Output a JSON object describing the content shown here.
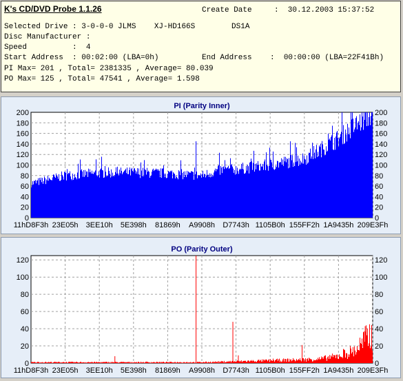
{
  "info": {
    "title": "K's CD/DVD Probe 1.1.26",
    "create_date_label": "Create Date",
    "create_date_value": ":  30.12.2003 15:37:52",
    "selected_drive": "Selected Drive : 3-0-0-0 JLMS    XJ-HD166S        DS1A",
    "disc_manufacturer": "Disc Manufacturer :",
    "speed": "Speed          :  4",
    "start_address": "Start Address  : 00:02:00 (LBA=0h)",
    "end_address": "End Address    :  00:00:00 (LBA=22F41Bh)",
    "pi_summary": "PI Max= 201 , Total= 2381335 , Average= 80.039",
    "po_summary": "PO Max= 125 , Total= 47541 , Average= 1.598"
  },
  "chart_data": [
    {
      "type": "bar",
      "title": "PI (Parity Inner)",
      "color": "#0000ff",
      "ylim": [
        0,
        200
      ],
      "yticks": [
        0,
        20,
        40,
        60,
        80,
        100,
        120,
        140,
        160,
        180,
        200
      ],
      "xticks": [
        "11hD8F3h",
        "23E05h",
        "3EE10h",
        "5E398h",
        "81869h",
        "A9908h",
        "D7743h",
        "1105B0h",
        "155FF2h",
        "1A9435h",
        "209E3Fh"
      ],
      "grid": true,
      "x_fraction": [
        0.0,
        0.1,
        0.2,
        0.3,
        0.4,
        0.5,
        0.55,
        0.6,
        0.7,
        0.8,
        0.85,
        0.9,
        0.95,
        1.0
      ],
      "values": [
        65,
        80,
        85,
        86,
        84,
        80,
        90,
        92,
        100,
        112,
        130,
        150,
        175,
        198
      ],
      "spikes": [
        {
          "x_fraction": 0.484,
          "value": 145
        },
        {
          "x_fraction": 0.775,
          "value": 142
        }
      ]
    },
    {
      "type": "bar",
      "title": "PO (Parity Outer)",
      "color": "#ff0000",
      "ylim": [
        0,
        125
      ],
      "yticks": [
        0,
        20,
        40,
        60,
        80,
        100,
        120
      ],
      "xticks": [
        "11hD8F3h",
        "23E05h",
        "3EE10h",
        "5E398h",
        "81869h",
        "A9908h",
        "D7743h",
        "1105B0h",
        "155FF2h",
        "1A9435h",
        "209E3Fh"
      ],
      "grid": true,
      "x_fraction": [
        0.0,
        0.3,
        0.5,
        0.6,
        0.7,
        0.8,
        0.85,
        0.9,
        0.95,
        1.0
      ],
      "values": [
        1,
        1,
        1,
        2,
        3,
        4,
        5,
        8,
        15,
        35
      ],
      "spikes": [
        {
          "x_fraction": 0.246,
          "value": 8
        },
        {
          "x_fraction": 0.484,
          "value": 125
        },
        {
          "x_fraction": 0.592,
          "value": 48
        },
        {
          "x_fraction": 0.608,
          "value": 9
        },
        {
          "x_fraction": 0.795,
          "value": 21
        },
        {
          "x_fraction": 0.98,
          "value": 43
        }
      ]
    }
  ]
}
